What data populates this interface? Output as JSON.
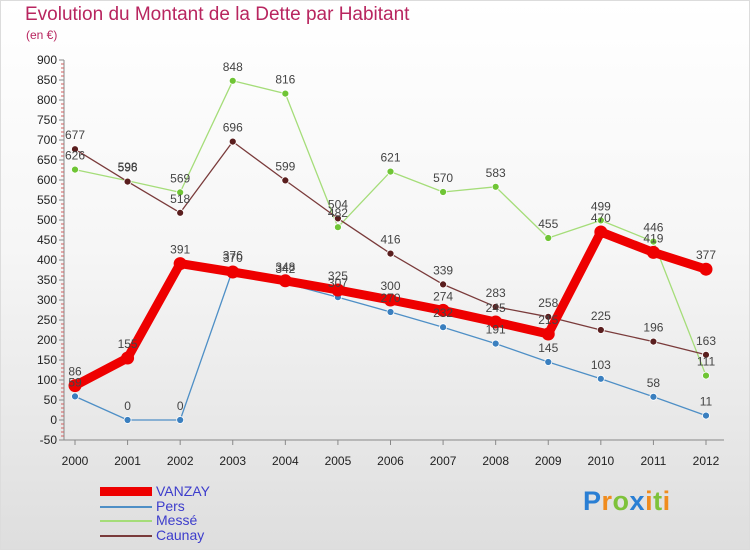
{
  "title": "Evolution du Montant de la Dette par Habitant",
  "subtitle": "(en €)",
  "logo": {
    "letters": [
      "P",
      "r",
      "o",
      "x",
      "i",
      "t",
      "i"
    ],
    "colors": [
      "#2a7fd4",
      "#f08c1e",
      "#7ec23a",
      "#2a7fd4",
      "#f08c1e",
      "#7ec23a",
      "#f08c1e"
    ]
  },
  "chart_data": {
    "type": "line",
    "x": [
      "2000",
      "2001",
      "2002",
      "2003",
      "2004",
      "2005",
      "2006",
      "2007",
      "2008",
      "2009",
      "2010",
      "2011",
      "2012"
    ],
    "ylim": [
      -50,
      900
    ],
    "yticks": [
      -50,
      0,
      50,
      100,
      150,
      200,
      250,
      300,
      350,
      400,
      450,
      500,
      550,
      600,
      650,
      700,
      750,
      800,
      850,
      900
    ],
    "grid": false,
    "legend_position": "bottom-left",
    "series": [
      {
        "name": "Pers",
        "color": "#4e8fc6",
        "dot": "#3a7fbf",
        "values": [
          59,
          0,
          0,
          376,
          342,
          307,
          270,
          232,
          191,
          145,
          103,
          58,
          11
        ]
      },
      {
        "name": "Messé",
        "color": "#a5dd79",
        "dot": "#6fc535",
        "values": [
          626,
          598,
          569,
          848,
          816,
          482,
          621,
          570,
          583,
          455,
          499,
          446,
          111
        ]
      },
      {
        "name": "Caunay",
        "color": "#7a3b3b",
        "dot": "#5a1e1e",
        "values": [
          677,
          596,
          518,
          696,
          599,
          504,
          416,
          339,
          283,
          258,
          225,
          196,
          163
        ]
      },
      {
        "name": "VANZAY",
        "color": "#ee0000",
        "dot": "#cc0000",
        "values": [
          86,
          155,
          391,
          370,
          348,
          325,
          300,
          274,
          245,
          215,
          470,
          419,
          377
        ]
      }
    ]
  }
}
